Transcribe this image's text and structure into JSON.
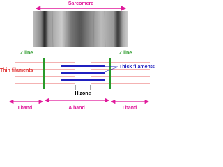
{
  "sarcomere": "Sarcomere",
  "z_lines": [
    "Z line",
    "Z line"
  ],
  "thin_filaments": "Thin filaments",
  "thick_filaments": "Thick filaments",
  "h_zone": "H zone",
  "bands": [
    "I band",
    "A band",
    "I band"
  ]
}
